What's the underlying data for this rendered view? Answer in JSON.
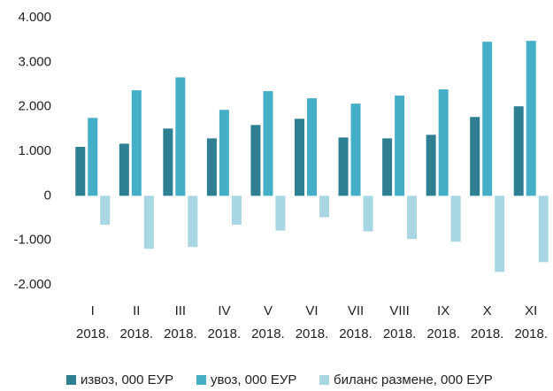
{
  "chart_data": {
    "type": "bar",
    "categories": [
      [
        "I",
        "2018."
      ],
      [
        "II",
        "2018."
      ],
      [
        "III",
        "2018."
      ],
      [
        "IV",
        "2018."
      ],
      [
        "V",
        "2018."
      ],
      [
        "VI",
        "2018."
      ],
      [
        "VII",
        "2018."
      ],
      [
        "VIII",
        "2018."
      ],
      [
        "IX",
        "2018."
      ],
      [
        "X",
        "2018."
      ],
      [
        "XI",
        "2018."
      ]
    ],
    "series": [
      {
        "name": "извоз, 000 ЕУР",
        "color": "#2f7f93",
        "values": [
          1100,
          1170,
          1510,
          1290,
          1590,
          1730,
          1310,
          1290,
          1370,
          1770,
          2010
        ]
      },
      {
        "name": "увоз, 000 ЕУР",
        "color": "#45afc8",
        "values": [
          1750,
          2370,
          2660,
          1930,
          2350,
          2190,
          2070,
          2250,
          2390,
          3460,
          3480
        ]
      },
      {
        "name": "биланс размене, 000 ЕУР",
        "color": "#a9d6e3",
        "values": [
          -650,
          -1190,
          -1150,
          -650,
          -780,
          -480,
          -800,
          -970,
          -1030,
          -1710,
          -1490
        ]
      }
    ],
    "ylim": [
      -2000,
      4000
    ],
    "yticks": [
      {
        "value": -2000,
        "label": "-2.000"
      },
      {
        "value": -1000,
        "label": "-1.000"
      },
      0,
      {
        "value": 1000,
        "label": "1.000"
      },
      {
        "value": 2000,
        "label": "2.000"
      },
      {
        "value": 3000,
        "label": "3.000"
      },
      {
        "value": 4000,
        "label": "4.000"
      }
    ],
    "grid": false,
    "legend": "bottom"
  }
}
